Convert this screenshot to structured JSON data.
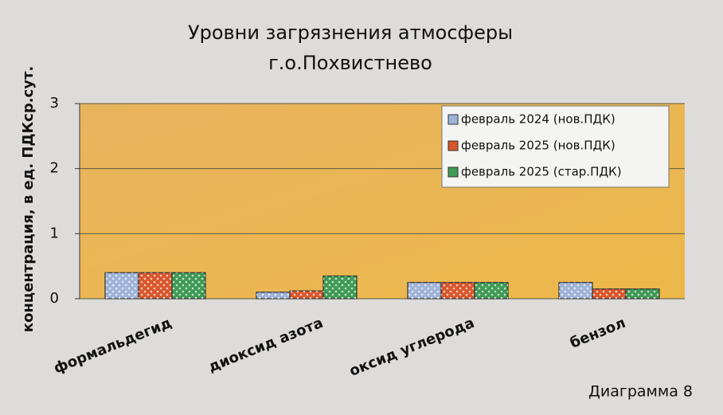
{
  "chart_data": {
    "type": "bar",
    "title": "Уровни загрязнения атмосферы",
    "subtitle": "г.о.Похвистнево",
    "y_axis_label": "концентрация, в ед. ПДКср.сут.",
    "annotation": "Диаграмма 8",
    "categories": [
      "формальдегид",
      "диоксид азота",
      "оксид углерода",
      "бензол"
    ],
    "series": [
      {
        "name": "февраль 2024 (нов.ПДК)",
        "color": "#9fb3d8",
        "values": [
          0.4,
          0.1,
          0.25,
          0.25
        ]
      },
      {
        "name": "февраль 2025 (нов.ПДК)",
        "color": "#d9572c",
        "values": [
          0.4,
          0.12,
          0.25,
          0.15
        ]
      },
      {
        "name": "февраль 2025 (стар.ПДК)",
        "color": "#3f9a55",
        "values": [
          0.4,
          0.35,
          0.25,
          0.15
        ]
      }
    ],
    "ylim": [
      0,
      3
    ],
    "yticks": [
      0,
      1,
      2,
      3
    ],
    "grid": true,
    "legend": "top-right"
  }
}
